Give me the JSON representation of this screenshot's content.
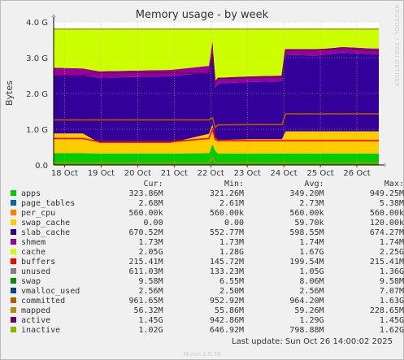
{
  "side_label": "RRDTOOL / TOBI OETIKER",
  "footer": {
    "last_update": "Last update:  Sun Oct 26 14:00:02 2025",
    "munin": "Munin 2.0.76"
  },
  "legend_headers": {
    "cur": "Cur:",
    "min": "Min:",
    "avg": "Avg:",
    "max": "Max:"
  },
  "legend": [
    {
      "name": "apps",
      "color": "#00cc00",
      "cur": "323.86M",
      "min": "321.26M",
      "avg": "349.20M",
      "max": "949.25M"
    },
    {
      "name": "page_tables",
      "color": "#0066b3",
      "cur": "2.68M",
      "min": "2.61M",
      "avg": "2.73M",
      "max": "5.38M"
    },
    {
      "name": "per_cpu",
      "color": "#ff8000",
      "cur": "560.00k",
      "min": "560.00k",
      "avg": "560.00k",
      "max": "560.00k"
    },
    {
      "name": "swap_cache",
      "color": "#ffcc00",
      "cur": "0.00",
      "min": "0.00",
      "avg": "59.70k",
      "max": "120.00k"
    },
    {
      "name": "slab_cache",
      "color": "#330099",
      "cur": "670.52M",
      "min": "552.77M",
      "avg": "598.55M",
      "max": "674.27M"
    },
    {
      "name": "shmem",
      "color": "#990099",
      "cur": "1.73M",
      "min": "1.73M",
      "avg": "1.74M",
      "max": "1.74M"
    },
    {
      "name": "cache",
      "color": "#ccff00",
      "cur": "2.05G",
      "min": "1.28G",
      "avg": "1.67G",
      "max": "2.25G"
    },
    {
      "name": "buffers",
      "color": "#ff0000",
      "cur": "215.41M",
      "min": "145.72M",
      "avg": "199.54M",
      "max": "215.41M"
    },
    {
      "name": "unused",
      "color": "#808080",
      "cur": "611.03M",
      "min": "133.23M",
      "avg": "1.05G",
      "max": "1.36G"
    },
    {
      "name": "swap",
      "color": "#008f00",
      "cur": "9.58M",
      "min": "6.55M",
      "avg": "8.06M",
      "max": "9.58M"
    },
    {
      "name": "vmalloc_used",
      "color": "#00487d",
      "cur": "2.56M",
      "min": "2.50M",
      "avg": "2.56M",
      "max": "7.07M"
    },
    {
      "name": "committed",
      "color": "#b35a00",
      "cur": "961.65M",
      "min": "952.92M",
      "avg": "964.20M",
      "max": "1.63G"
    },
    {
      "name": "mapped",
      "color": "#b38f00",
      "cur": "56.32M",
      "min": "55.86M",
      "avg": "59.26M",
      "max": "228.65M"
    },
    {
      "name": "active",
      "color": "#6b006b",
      "cur": "1.45G",
      "min": "942.86M",
      "avg": "1.29G",
      "max": "1.45G"
    },
    {
      "name": "inactive",
      "color": "#8fb300",
      "cur": "1.02G",
      "min": "646.92M",
      "avg": "798.88M",
      "max": "1.62G"
    }
  ],
  "chart_data": {
    "type": "area",
    "title": "Memory usage - by week",
    "ylabel": "Bytes",
    "xlabel": "",
    "ylim": [
      0,
      4.0
    ],
    "yunit": "G",
    "yticks": [
      0,
      1,
      2,
      3,
      4
    ],
    "ytick_labels": [
      "0.0",
      "1.0 G",
      "2.0 G",
      "3.0 G",
      "4.0 G"
    ],
    "xlim": [
      17.7,
      26.6
    ],
    "xticks": [
      18,
      19,
      20,
      21,
      22,
      23,
      24,
      25,
      26
    ],
    "xtick_labels": [
      "18 Oct",
      "19 Oct",
      "20 Oct",
      "21 Oct",
      "22 Oct",
      "23 Oct",
      "24 Oct",
      "25 Oct",
      "26 Oct"
    ],
    "grid": true,
    "x": [
      17.7,
      18.5,
      18.95,
      20.9,
      21.95,
      22.05,
      22.12,
      22.2,
      23.1,
      23.95,
      24.05,
      24.9,
      25.6,
      26.4,
      26.6
    ],
    "stacked_series": [
      {
        "name": "apps",
        "color": "#00cc00",
        "values": [
          0.33,
          0.33,
          0.32,
          0.32,
          0.33,
          0.58,
          0.4,
          0.32,
          0.32,
          0.32,
          0.32,
          0.32,
          0.32,
          0.32,
          0.32
        ]
      },
      {
        "name": "swap_cache",
        "color": "#ffcc00",
        "values": [
          0.55,
          0.55,
          0.3,
          0.3,
          0.54,
          0.55,
          0.36,
          0.38,
          0.4,
          0.4,
          0.62,
          0.62,
          0.62,
          0.62,
          0.62
        ]
      },
      {
        "name": "slab_cache",
        "color": "#330099",
        "values": [
          1.64,
          1.62,
          1.82,
          1.86,
          1.72,
          2.05,
          1.4,
          1.58,
          1.6,
          1.62,
          2.14,
          2.12,
          2.2,
          2.16,
          2.16
        ]
      },
      {
        "name": "shmem",
        "color": "#990099",
        "values": [
          0.2,
          0.2,
          0.18,
          0.18,
          0.18,
          0.3,
          0.14,
          0.16,
          0.16,
          0.16,
          0.16,
          0.16,
          0.16,
          0.16,
          0.16
        ]
      },
      {
        "name": "cache",
        "color": "#ccff00",
        "values": [
          1.08,
          1.1,
          1.18,
          1.14,
          1.03,
          0.32,
          1.52,
          1.36,
          1.32,
          1.3,
          0.56,
          0.58,
          0.5,
          0.54,
          0.54
        ]
      }
    ],
    "line_series": [
      {
        "name": "buffers",
        "color": "#ff0000",
        "values": [
          0.74,
          0.74,
          0.65,
          0.65,
          0.74,
          1.0,
          0.72,
          0.68,
          0.68,
          0.68,
          0.68,
          0.68,
          0.68,
          0.68,
          0.68
        ]
      },
      {
        "name": "committed",
        "color": "#b35a00",
        "values": [
          1.26,
          1.26,
          1.26,
          1.26,
          1.26,
          1.32,
          1.05,
          1.12,
          1.13,
          1.13,
          1.43,
          1.43,
          1.43,
          1.43,
          1.43
        ]
      },
      {
        "name": "mapped",
        "color": "#b38f00",
        "values": [
          0.06,
          0.06,
          0.06,
          0.06,
          0.06,
          0.2,
          0.06,
          0.06,
          0.06,
          0.06,
          0.06,
          0.06,
          0.06,
          0.06,
          0.06
        ]
      },
      {
        "name": "active",
        "color": "#6b006b",
        "values": [
          2.5,
          2.5,
          2.58,
          2.58,
          2.56,
          3.1,
          2.3,
          2.42,
          2.44,
          2.46,
          3.22,
          3.22,
          3.26,
          3.2,
          3.2
        ]
      },
      {
        "name": "inactive",
        "color": "#8fb300",
        "values": [
          3.8,
          3.8,
          3.8,
          3.8,
          3.8,
          3.8,
          3.8,
          3.8,
          3.8,
          3.8,
          3.8,
          3.8,
          3.8,
          3.8,
          3.8
        ]
      }
    ]
  }
}
